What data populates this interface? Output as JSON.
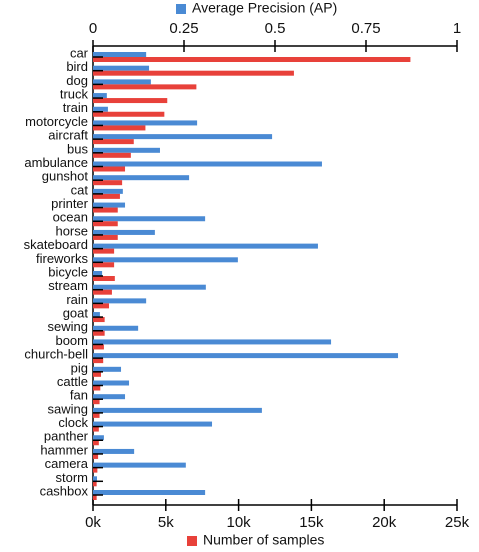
{
  "chart_data": {
    "type": "bar",
    "orientation": "horizontal",
    "categories": [
      "car",
      "bird",
      "dog",
      "truck",
      "train",
      "motorcycle",
      "aircraft",
      "bus",
      "ambulance",
      "gunshot",
      "cat",
      "printer",
      "ocean",
      "horse",
      "skateboard",
      "fireworks",
      "bicycle",
      "stream",
      "rain",
      "goat",
      "sewing",
      "boom",
      "church-bell",
      "pig",
      "cattle",
      "fan",
      "sawing",
      "clock",
      "panther",
      "hammer",
      "camera",
      "storm",
      "cashbox"
    ],
    "series": [
      {
        "name": "Average Precision (AP)",
        "color": "#4a8ad4",
        "axis": "x2",
        "values": [
          0.146,
          0.154,
          0.159,
          0.038,
          0.041,
          0.286,
          0.492,
          0.184,
          0.629,
          0.264,
          0.082,
          0.088,
          0.308,
          0.17,
          0.618,
          0.398,
          0.025,
          0.31,
          0.146,
          0.019,
          0.124,
          0.654,
          0.838,
          0.077,
          0.099,
          0.088,
          0.464,
          0.327,
          0.03,
          0.113,
          0.255,
          0.011,
          0.308
        ]
      },
      {
        "name": "Number of samples",
        "color": "#e8413a",
        "values": [
          21800,
          13800,
          7100,
          5100,
          4900,
          3600,
          2800,
          2600,
          2200,
          2000,
          1850,
          1700,
          1700,
          1700,
          1450,
          1450,
          1500,
          1300,
          1100,
          800,
          800,
          750,
          700,
          550,
          500,
          450,
          450,
          400,
          400,
          350,
          300,
          250,
          250
        ]
      }
    ],
    "xlim": [
      0,
      25000
    ],
    "xticks": [
      {
        "value": 0,
        "label": "0k"
      },
      {
        "value": 5000,
        "label": "5k"
      },
      {
        "value": 10000,
        "label": "10k"
      },
      {
        "value": 15000,
        "label": "15k"
      },
      {
        "value": 20000,
        "label": "20k"
      },
      {
        "value": 25000,
        "label": "25k"
      }
    ],
    "x2lim": [
      0,
      1
    ],
    "x2ticks": [
      0,
      0.25,
      0.5,
      0.75,
      1
    ]
  }
}
